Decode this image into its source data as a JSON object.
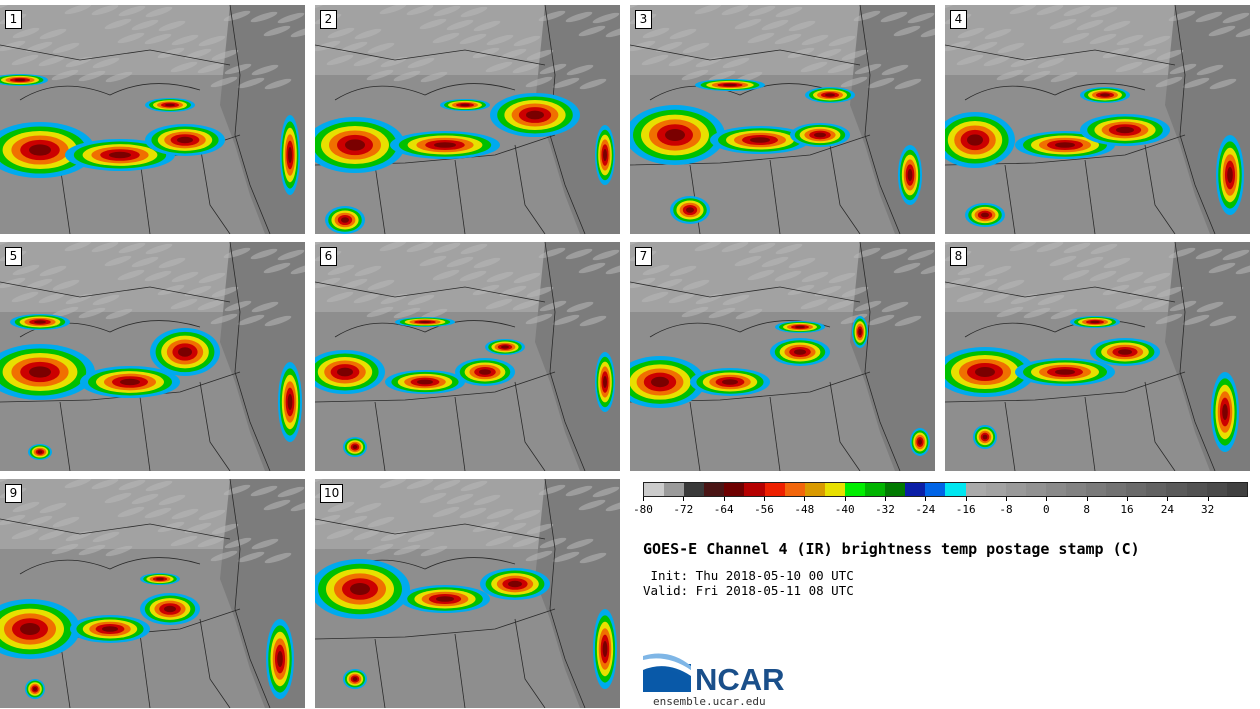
{
  "panels": [
    {
      "label": "1"
    },
    {
      "label": "2"
    },
    {
      "label": "3"
    },
    {
      "label": "4"
    },
    {
      "label": "5"
    },
    {
      "label": "6"
    },
    {
      "label": "7"
    },
    {
      "label": "8"
    },
    {
      "label": "9"
    },
    {
      "label": "10"
    }
  ],
  "colorbar": {
    "tick_labels": [
      "-80",
      "-72",
      "-64",
      "-56",
      "-48",
      "-40",
      "-32",
      "-24",
      "-16",
      "-8",
      "0",
      "8",
      "16",
      "24",
      "32"
    ],
    "tick_values": [
      -80,
      -72,
      -64,
      -56,
      -48,
      -40,
      -32,
      -24,
      -16,
      -8,
      0,
      8,
      16,
      24,
      32
    ],
    "min": -80,
    "max": 40,
    "step": 4,
    "colors": [
      "#cccccc",
      "#9b9b9b",
      "#3a3a3a",
      "#4a1515",
      "#6e0000",
      "#b50000",
      "#ee2000",
      "#f2660c",
      "#d99a00",
      "#e8e000",
      "#00ee00",
      "#00b400",
      "#007a00",
      "#0a1ea6",
      "#0064e6",
      "#00e6f0",
      "#aaaaaa",
      "#a3a3a3",
      "#9a9a9a",
      "#929292",
      "#8a8a8a",
      "#828282",
      "#7a7a7a",
      "#727272",
      "#6a6a6a",
      "#626262",
      "#5a5a5a",
      "#525252",
      "#4a4a4a",
      "#404040"
    ]
  },
  "title": "GOES-E Channel 4 (IR) brightness temp postage stamp (C)",
  "init_text": " Init: Thu 2018-05-10 00 UTC",
  "valid_text": "Valid: Fri 2018-05-11 08 UTC",
  "logo": {
    "text": "NCAR",
    "url": "ensemble.ucar.edu",
    "color": "#1a4f8a"
  }
}
